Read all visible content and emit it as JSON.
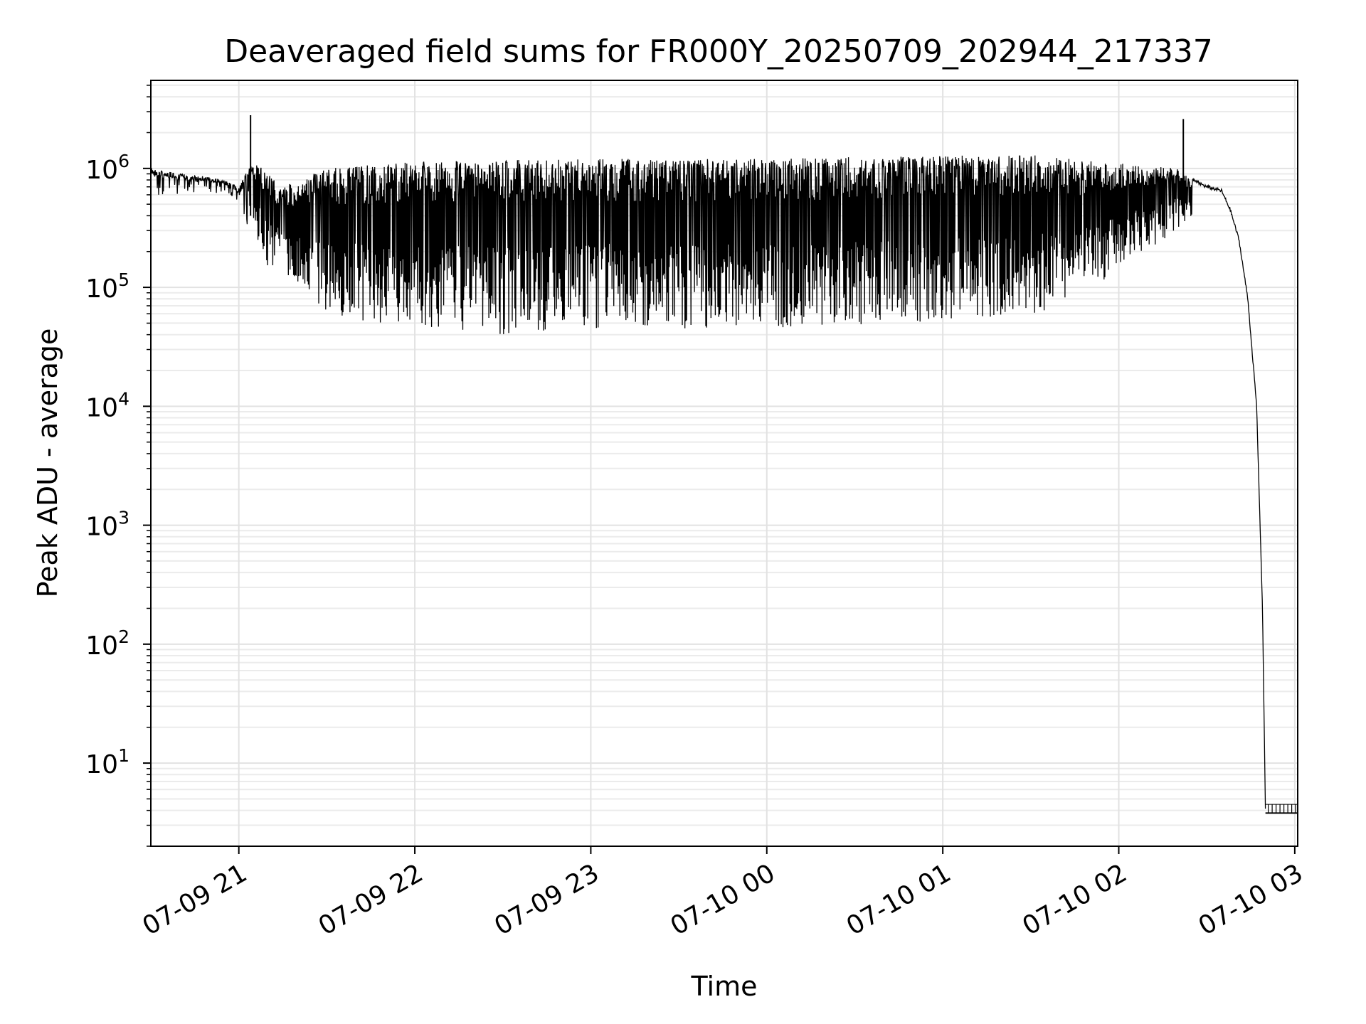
{
  "chart_data": {
    "type": "line",
    "title": "Deaveraged field sums for FR000Y_20250709_202944_217337",
    "xlabel": "Time",
    "ylabel": "Peak ADU - average",
    "x_range": [
      "2025-07-09 20:30",
      "2025-07-10 03:01"
    ],
    "ylim": [
      2,
      5500000
    ],
    "y_scale": "log",
    "grid": true,
    "x_ticks": [
      "07-09 21",
      "07-09 22",
      "07-09 23",
      "07-10 00",
      "07-10 01",
      "07-10 02",
      "07-10 03"
    ],
    "y_ticks": [
      {
        "base": "10",
        "exp": "1",
        "value": 10
      },
      {
        "base": "10",
        "exp": "2",
        "value": 100
      },
      {
        "base": "10",
        "exp": "3",
        "value": 1000
      },
      {
        "base": "10",
        "exp": "4",
        "value": 10000
      },
      {
        "base": "10",
        "exp": "5",
        "value": 100000
      },
      {
        "base": "10",
        "exp": "6",
        "value": 1000000
      }
    ],
    "series": [
      {
        "color": "#000000",
        "upper_envelope": {
          "x": [
            "2025-07-09 20:30",
            "2025-07-09 20:40",
            "2025-07-09 20:50",
            "2025-07-09 20:55",
            "2025-07-09 21:00",
            "2025-07-09 21:05",
            "2025-07-09 21:15",
            "2025-07-09 21:30",
            "2025-07-09 22:00",
            "2025-07-09 23:00",
            "2025-07-10 00:00",
            "2025-07-10 01:00",
            "2025-07-10 01:30",
            "2025-07-10 02:00",
            "2025-07-10 02:20",
            "2025-07-10 02:25",
            "2025-07-10 02:30",
            "2025-07-10 02:35",
            "2025-07-10 02:38",
            "2025-07-10 02:41",
            "2025-07-10 02:44",
            "2025-07-10 02:47",
            "2025-07-10 02:49",
            "2025-07-10 02:50",
            "2025-07-10 03:01"
          ],
          "y": [
            1000000,
            900000,
            850000,
            800000,
            700000,
            1200000,
            700000,
            1000000,
            1150000,
            1200000,
            1200000,
            1300000,
            1300000,
            1100000,
            1000000,
            800000,
            700000,
            650000,
            450000,
            250000,
            80000,
            10000,
            200,
            4,
            4
          ]
        },
        "lower_envelope": {
          "x": [
            "2025-07-09 20:30",
            "2025-07-09 20:55",
            "2025-07-09 21:00",
            "2025-07-09 21:10",
            "2025-07-09 21:20",
            "2025-07-09 21:30",
            "2025-07-09 21:45",
            "2025-07-09 22:30",
            "2025-07-09 23:00",
            "2025-07-10 00:00",
            "2025-07-10 01:00",
            "2025-07-10 01:30",
            "2025-07-10 01:45",
            "2025-07-10 02:00",
            "2025-07-10 02:15",
            "2025-07-10 02:25"
          ],
          "y": [
            550000,
            600000,
            400000,
            150000,
            110000,
            60000,
            50000,
            40000,
            45000,
            45000,
            50000,
            60000,
            70000,
            150000,
            250000,
            400000
          ]
        },
        "spikes": [
          {
            "x": "2025-07-09 21:04",
            "y": 2800000
          },
          {
            "x": "2025-07-10 02:22",
            "y": 2600000
          }
        ],
        "tail_floor": {
          "x": [
            "2025-07-10 02:50",
            "2025-07-10 03:01"
          ],
          "y": 3.8,
          "teeth_top": 4.5
        }
      }
    ]
  }
}
